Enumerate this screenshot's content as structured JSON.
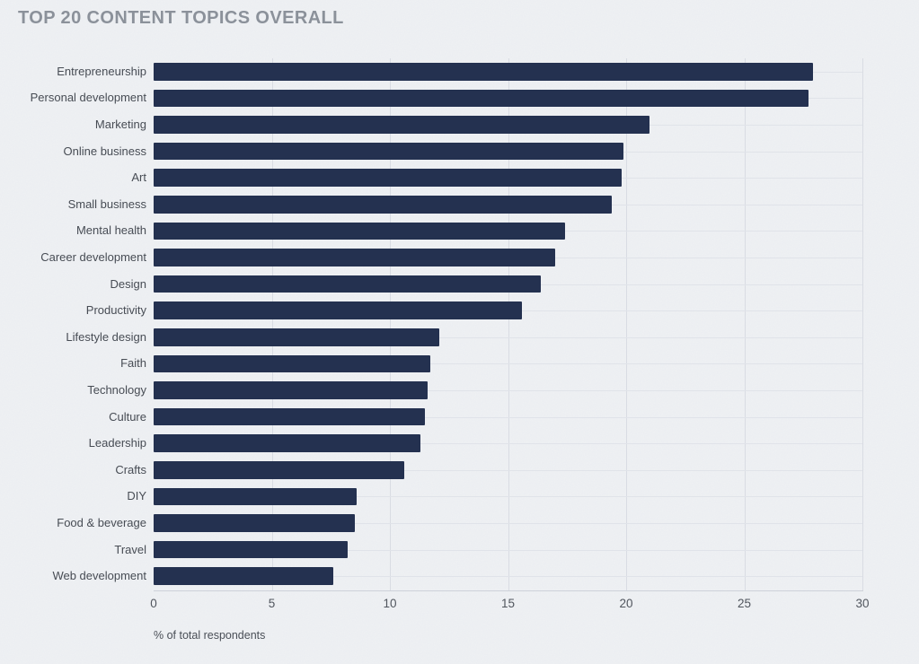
{
  "chart_data": {
    "type": "bar",
    "orientation": "horizontal",
    "title": "TOP 20 CONTENT TOPICS OVERALL",
    "xlabel": "% of total respondents",
    "ylabel": "",
    "xlim": [
      0,
      30
    ],
    "xticks": [
      0,
      5,
      10,
      15,
      20,
      25,
      30
    ],
    "grid": true,
    "legend": "none",
    "bar_color": "#243150",
    "background_color": "#eff1f4",
    "title_color": "#8b919a",
    "categories": [
      "Entrepreneurship",
      "Personal development",
      "Marketing",
      "Online business",
      "Art",
      "Small business",
      "Mental health",
      "Career development",
      "Design",
      "Productivity",
      "Lifestyle design",
      "Faith",
      "Technology",
      "Culture",
      "Leadership",
      "Crafts",
      "DIY",
      "Food & beverage",
      "Travel",
      "Web development"
    ],
    "values": [
      27.9,
      27.7,
      21.0,
      19.9,
      19.8,
      19.4,
      17.4,
      17.0,
      16.4,
      15.6,
      12.1,
      11.7,
      11.6,
      11.5,
      11.3,
      10.6,
      8.6,
      8.5,
      8.2,
      7.6
    ]
  }
}
